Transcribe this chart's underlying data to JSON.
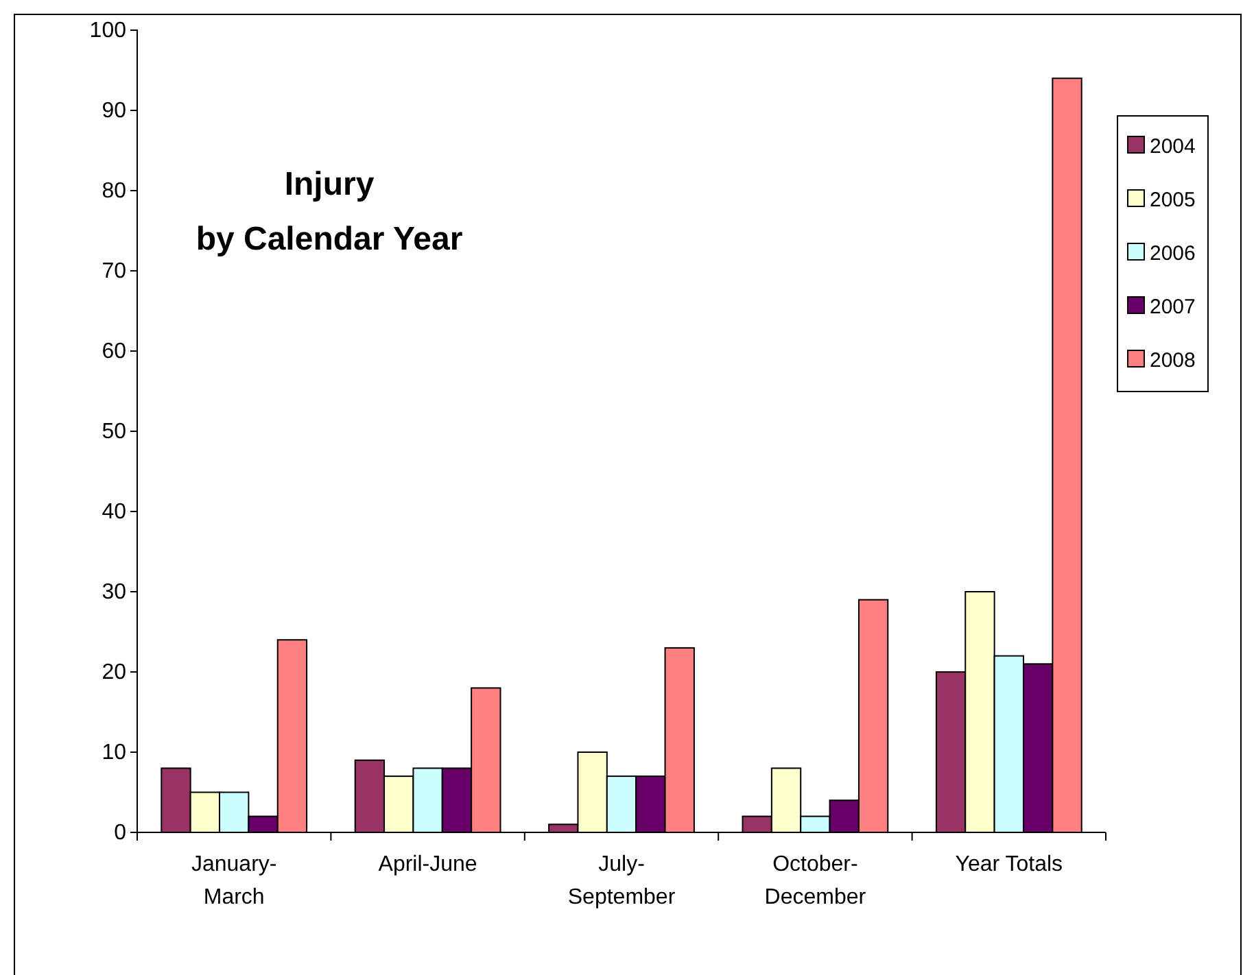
{
  "chart_data": {
    "type": "bar",
    "title": "Injury\nby Calendar Year",
    "categories": [
      "January-\nMarch",
      "April-June",
      "July-\nSeptember",
      "October-\nDecember",
      "Year Totals"
    ],
    "series": [
      {
        "name": "2004",
        "color": "#993366",
        "values": [
          8,
          9,
          1,
          2,
          20
        ]
      },
      {
        "name": "2005",
        "color": "#ffffcc",
        "values": [
          5,
          7,
          10,
          8,
          30
        ]
      },
      {
        "name": "2006",
        "color": "#ccffff",
        "values": [
          5,
          8,
          7,
          2,
          22
        ]
      },
      {
        "name": "2007",
        "color": "#660066",
        "values": [
          2,
          8,
          7,
          4,
          21
        ]
      },
      {
        "name": "2008",
        "color": "#ff8080",
        "values": [
          24,
          18,
          23,
          29,
          94
        ]
      }
    ],
    "ylim": [
      0,
      100
    ],
    "yticks": [
      0,
      10,
      20,
      30,
      40,
      50,
      60,
      70,
      80,
      90,
      100
    ],
    "grid": false,
    "legend": "right"
  }
}
